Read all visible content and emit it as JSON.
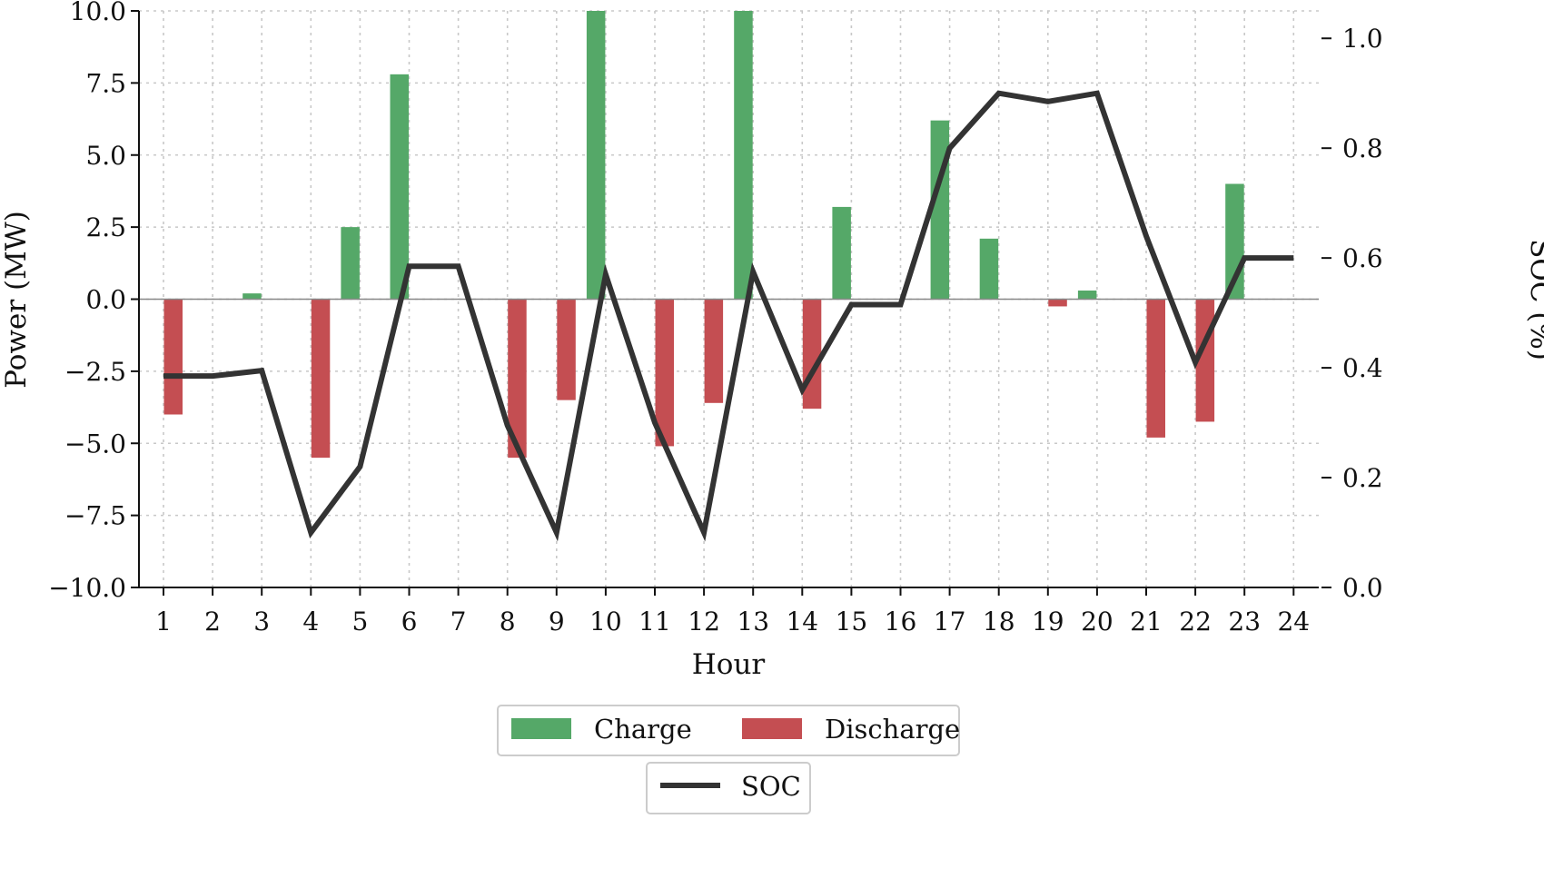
{
  "chart_data": {
    "type": "bar",
    "categories": [
      "1",
      "2",
      "3",
      "4",
      "5",
      "6",
      "7",
      "8",
      "9",
      "10",
      "11",
      "12",
      "13",
      "14",
      "15",
      "16",
      "17",
      "18",
      "19",
      "20",
      "21",
      "22",
      "23",
      "24"
    ],
    "xlabel": "Hour",
    "ylabel": "Power (MW)",
    "y2label": "SOC (%)",
    "ylim": [
      -10.0,
      10.0
    ],
    "y2lim": [
      0.0,
      1.05
    ],
    "yticks": [
      "10.0",
      "7.5",
      "5.0",
      "2.5",
      "0.0",
      "−2.5",
      "−5.0",
      "−7.5",
      "−10.0"
    ],
    "yticks_values": [
      10.0,
      7.5,
      5.0,
      2.5,
      0.0,
      -2.5,
      -5.0,
      -7.5,
      -10.0
    ],
    "y2ticks": [
      "1.0",
      "0.8",
      "0.6",
      "0.4",
      "0.2",
      "0.0"
    ],
    "y2ticks_values": [
      1.0,
      0.8,
      0.6,
      0.4,
      0.2,
      0.0
    ],
    "grid": true,
    "legend_placement": "below",
    "series": [
      {
        "name": "Charge",
        "type": "bar",
        "color": "#55a868",
        "values": [
          0,
          0,
          0.2,
          0,
          2.5,
          7.8,
          0,
          0,
          0,
          10.0,
          0,
          0,
          10.0,
          0,
          3.2,
          0,
          6.2,
          2.1,
          0,
          0.3,
          0,
          0,
          4.0,
          0
        ]
      },
      {
        "name": "Discharge",
        "type": "bar",
        "color": "#c44e52",
        "values": [
          -4.0,
          0,
          0,
          -5.5,
          0,
          0,
          0,
          -5.5,
          -3.5,
          0,
          -5.1,
          -3.6,
          0,
          -3.8,
          0,
          0,
          0,
          0,
          -0.25,
          0,
          -4.8,
          -4.25,
          0,
          0
        ]
      },
      {
        "name": "SOC",
        "type": "line",
        "color": "#333333",
        "axis": "right",
        "values": [
          0.385,
          0.385,
          0.395,
          0.1,
          0.22,
          0.585,
          0.585,
          0.295,
          0.1,
          0.57,
          0.3,
          0.1,
          0.575,
          0.36,
          0.515,
          0.515,
          0.8,
          0.9,
          0.885,
          0.9,
          0.64,
          0.41,
          0.6,
          0.6
        ]
      }
    ]
  }
}
